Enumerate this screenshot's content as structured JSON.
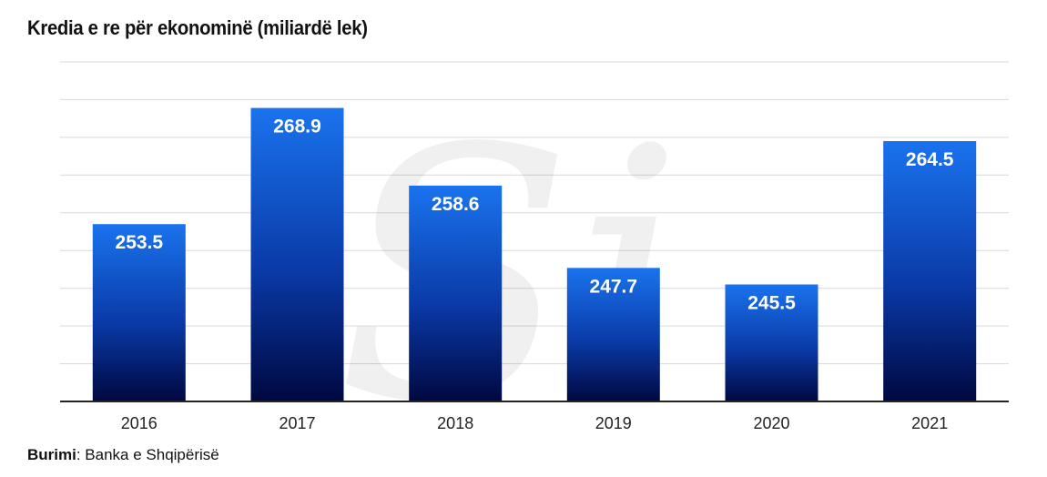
{
  "title": "Kredia e re për ekonominë (miliardë lek)",
  "watermark": "Si",
  "source": {
    "label": "Burimi",
    "separator": ":",
    "text": " Banka e Shqipërisë"
  },
  "colors": {
    "bar_top": "#1a73ee",
    "bar_bottom": "#000840",
    "grid": "#d9d9d9",
    "axis": "#222222",
    "label": "#ffffff"
  },
  "chart_data": {
    "type": "bar",
    "title": "Kredia e re për ekonominë (miliardë lek)",
    "categories": [
      "2016",
      "2017",
      "2018",
      "2019",
      "2020",
      "2021"
    ],
    "values": [
      253.5,
      268.9,
      258.6,
      247.7,
      245.5,
      264.5
    ],
    "value_labels": [
      "253.5",
      "268.9",
      "258.6",
      "247.7",
      "245.5",
      "264.5"
    ],
    "xlabel": "",
    "ylabel": "",
    "ylim": [
      230,
      275
    ],
    "grid": true,
    "legend": "none"
  }
}
